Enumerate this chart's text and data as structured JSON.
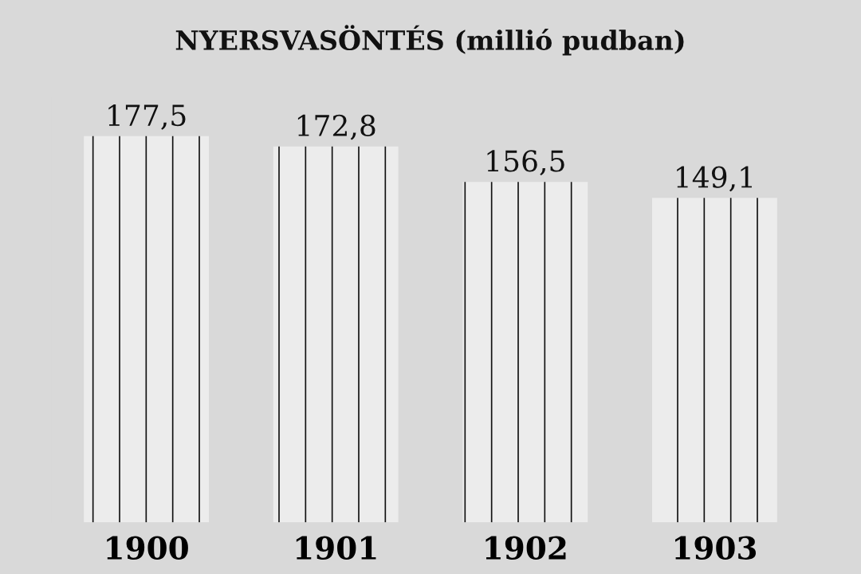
{
  "chart_data": {
    "type": "bar",
    "title": "NYERSVASÖNTÉS (millió pudban)",
    "categories": [
      "1900",
      "1901",
      "1902",
      "1903"
    ],
    "values": [
      177.5,
      172.8,
      156.5,
      149.1
    ],
    "value_labels": [
      "177,5",
      "172,8",
      "156,5",
      "149,1"
    ],
    "color": "#ececec"
  }
}
